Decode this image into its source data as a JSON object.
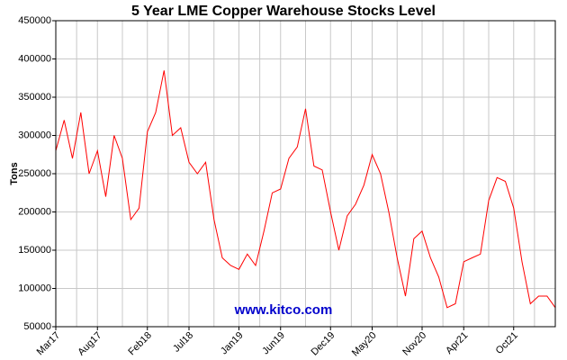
{
  "chart_data": {
    "type": "line",
    "title": "5 Year LME Copper Warehouse Stocks Level",
    "y_label": "Tons",
    "annotation": "www.kitco.com",
    "categories": [
      "Mar17",
      null,
      null,
      null,
      null,
      "Aug17",
      null,
      null,
      null,
      null,
      null,
      "Feb18",
      null,
      null,
      null,
      null,
      "Jul18",
      null,
      null,
      null,
      null,
      null,
      "Jan19",
      null,
      null,
      null,
      null,
      "Jun19",
      null,
      null,
      null,
      null,
      null,
      "Dec19",
      null,
      null,
      null,
      null,
      "May20",
      null,
      null,
      null,
      null,
      null,
      "Nov20",
      null,
      null,
      null,
      null,
      "Apr21",
      null,
      null,
      null,
      null,
      null,
      "Oct21",
      null,
      null,
      null,
      null,
      null
    ],
    "values": [
      280000,
      320000,
      270000,
      330000,
      250000,
      280000,
      220000,
      300000,
      270000,
      190000,
      205000,
      305000,
      330000,
      385000,
      300000,
      310000,
      265000,
      250000,
      265000,
      190000,
      140000,
      130000,
      125000,
      145000,
      130000,
      175000,
      225000,
      230000,
      270000,
      285000,
      335000,
      260000,
      255000,
      200000,
      150000,
      195000,
      210000,
      235000,
      275000,
      250000,
      200000,
      140000,
      90000,
      165000,
      175000,
      140000,
      115000,
      75000,
      80000,
      135000,
      140000,
      145000,
      215000,
      245000,
      240000,
      205000,
      135000,
      80000,
      90000,
      90000,
      75000
    ],
    "color": "#ff0000",
    "ylim": [
      50000,
      450000
    ],
    "yticks": [
      50000,
      100000,
      150000,
      200000,
      250000,
      300000,
      350000,
      400000,
      450000
    ],
    "grid": true
  }
}
